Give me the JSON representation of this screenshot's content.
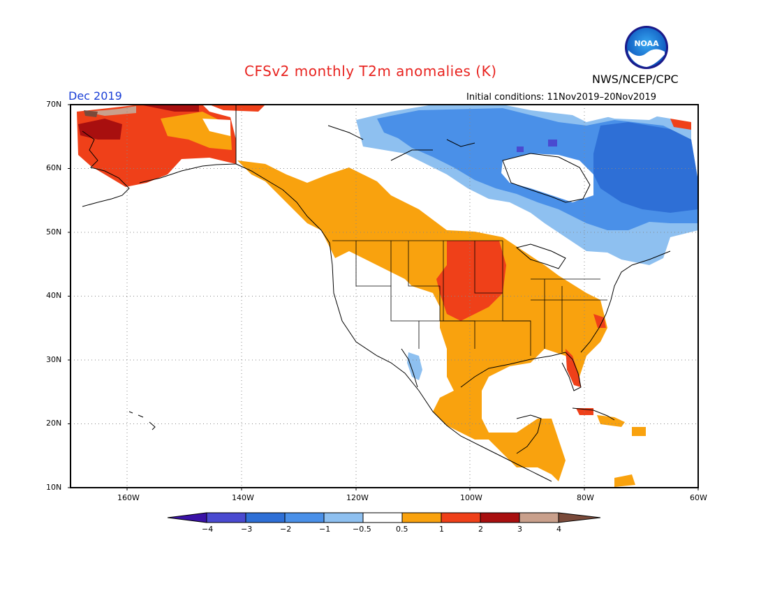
{
  "header": {
    "title": "CFSv2 monthly T2m anomalies (K)",
    "month": "Dec 2019",
    "initial_conditions": "Initial conditions: 11Nov2019–20Nov2019",
    "agency": "NWS/NCEP/CPC",
    "logo_text": "NOAA"
  },
  "map": {
    "lat_labels": [
      "70N",
      "60N",
      "50N",
      "40N",
      "30N",
      "20N",
      "10N"
    ],
    "lon_labels": [
      "160W",
      "140W",
      "120W",
      "100W",
      "80W",
      "60W"
    ],
    "extent": {
      "lon_min": -170,
      "lon_max": -60,
      "lat_min": 10,
      "lat_max": 70
    }
  },
  "colorbar": {
    "labels": [
      "−4",
      "−3",
      "−2",
      "−1",
      "−0.5",
      "0.5",
      "1",
      "2",
      "3",
      "4"
    ],
    "colors": [
      "#3a12a6",
      "#4a4ad0",
      "#2e6fd6",
      "#4a90e8",
      "#8ec0f0",
      "#ffffff",
      "#f9a20e",
      "#ef4019",
      "#a80f0f",
      "#c9a08c",
      "#7a4a3a"
    ]
  }
}
